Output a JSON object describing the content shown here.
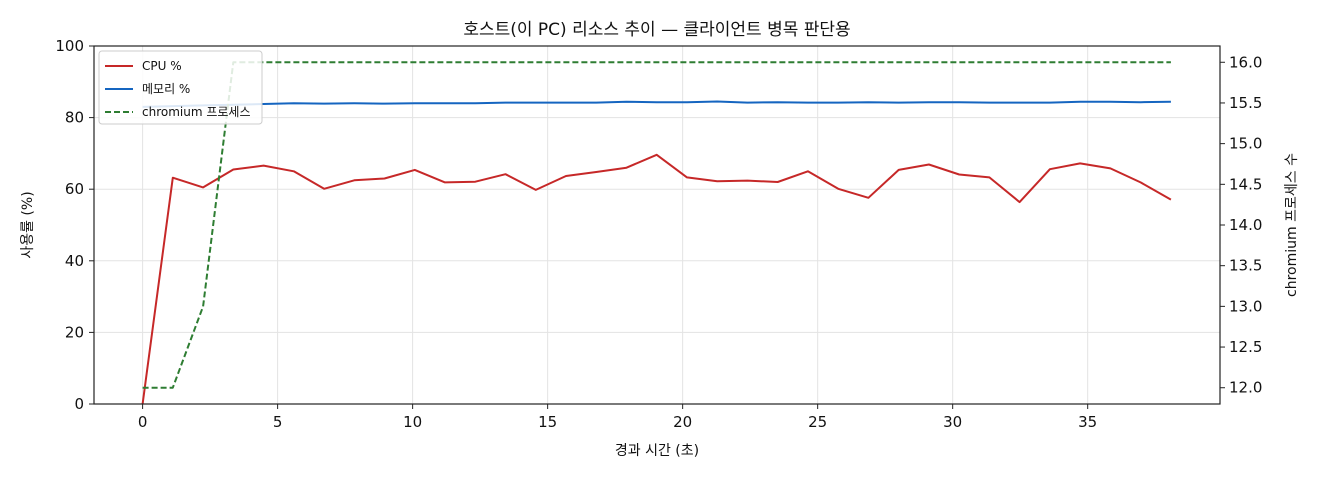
{
  "chart_data": {
    "type": "line",
    "title": "호스트(이 PC) 리소스 추이 — 클라이언트 병목 판단용",
    "xlabel": "경과 시간 (초)",
    "ylabel": "사용률 (%)",
    "y2label": "chromium 프로세스 수",
    "xlim": [
      -1.8,
      39.9
    ],
    "ylim": [
      0,
      100
    ],
    "y2lim": [
      11.8,
      16.2
    ],
    "xticks": [
      0,
      5,
      10,
      15,
      20,
      25,
      30,
      35
    ],
    "yticks": [
      0,
      20,
      40,
      60,
      80,
      100
    ],
    "y2ticks": [
      12.0,
      12.5,
      13.0,
      13.5,
      14.0,
      14.5,
      15.0,
      15.5,
      16.0
    ],
    "grid": true,
    "legend_position": "top-left",
    "x": [
      0,
      1.12,
      2.24,
      3.36,
      4.48,
      5.6,
      6.72,
      7.84,
      8.96,
      10.08,
      11.2,
      12.32,
      13.44,
      14.56,
      15.68,
      16.8,
      17.92,
      19.04,
      20.16,
      21.28,
      22.4,
      23.52,
      24.64,
      25.76,
      26.88,
      28.0,
      29.12,
      30.24,
      31.36,
      32.48,
      33.6,
      34.72,
      35.84,
      36.96,
      38.08
    ],
    "series": [
      {
        "name": "CPU %",
        "axis": "left",
        "color": "#c62828",
        "style": "solid",
        "values": [
          0,
          63.2,
          60.5,
          65.5,
          66.6,
          65.0,
          60.1,
          62.5,
          63.0,
          65.4,
          61.9,
          62.1,
          64.2,
          59.8,
          63.7,
          64.8,
          66.0,
          69.6,
          63.3,
          62.2,
          62.4,
          62.0,
          65.0,
          60.1,
          57.6,
          65.4,
          66.9,
          64.1,
          63.3,
          56.4,
          65.6,
          67.2,
          65.8,
          61.9,
          57.1
        ]
      },
      {
        "name": "메모리 %",
        "axis": "left",
        "color": "#1565c0",
        "style": "solid",
        "values": [
          83.0,
          83.2,
          83.4,
          83.6,
          83.8,
          84.0,
          83.9,
          84.0,
          83.9,
          84.0,
          84.0,
          84.0,
          84.2,
          84.2,
          84.2,
          84.2,
          84.4,
          84.3,
          84.3,
          84.5,
          84.2,
          84.3,
          84.2,
          84.2,
          84.3,
          84.2,
          84.3,
          84.3,
          84.2,
          84.2,
          84.2,
          84.4,
          84.4,
          84.3,
          84.4
        ]
      },
      {
        "name": "chromium 프로세스",
        "axis": "right",
        "color": "#2e7d32",
        "style": "dashed",
        "values": [
          12,
          12,
          13,
          16,
          16,
          16,
          16,
          16,
          16,
          16,
          16,
          16,
          16,
          16,
          16,
          16,
          16,
          16,
          16,
          16,
          16,
          16,
          16,
          16,
          16,
          16,
          16,
          16,
          16,
          16,
          16,
          16,
          16,
          16,
          16
        ]
      }
    ]
  }
}
